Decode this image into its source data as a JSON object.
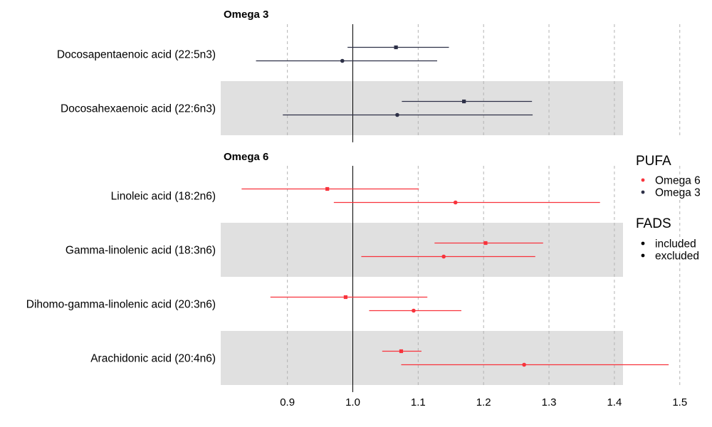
{
  "chart_data": {
    "type": "forest",
    "x_ticks": [
      0.9,
      1.0,
      1.1,
      1.2,
      1.3,
      1.4,
      1.5
    ],
    "x_tick_labels": [
      "0.9",
      "1.0",
      "1.1",
      "1.2",
      "1.3",
      "1.4",
      "1.5"
    ],
    "reference_line": 1.0,
    "panels": [
      {
        "title": "Omega 3",
        "group": "Omega 3",
        "rows": [
          {
            "label": "Docosapentaenoic acid (22:5n3)",
            "shaded": false,
            "estimates": [
              {
                "fads": "included",
                "est": 1.066,
                "lo": 0.992,
                "hi": 1.147
              },
              {
                "fads": "excluded",
                "est": 0.984,
                "lo": 0.852,
                "hi": 1.129
              }
            ]
          },
          {
            "label": "Docosahexaenoic acid (22:6n3)",
            "shaded": true,
            "estimates": [
              {
                "fads": "included",
                "est": 1.17,
                "lo": 1.075,
                "hi": 1.274
              },
              {
                "fads": "excluded",
                "est": 1.068,
                "lo": 0.893,
                "hi": 1.275
              }
            ]
          }
        ]
      },
      {
        "title": "Omega 6",
        "group": "Omega 6",
        "rows": [
          {
            "label": "Linoleic acid (18:2n6)",
            "shaded": false,
            "estimates": [
              {
                "fads": "included",
                "est": 0.961,
                "lo": 0.83,
                "hi": 1.101
              },
              {
                "fads": "excluded",
                "est": 1.157,
                "lo": 0.971,
                "hi": 1.378
              }
            ]
          },
          {
            "label": "Gamma-linolenic acid (18:3n6)",
            "shaded": true,
            "estimates": [
              {
                "fads": "included",
                "est": 1.203,
                "lo": 1.125,
                "hi": 1.291
              },
              {
                "fads": "excluded",
                "est": 1.139,
                "lo": 1.013,
                "hi": 1.279
              }
            ]
          },
          {
            "label": "Dihomo-gamma-linolenic acid (20:3n6)",
            "shaded": false,
            "estimates": [
              {
                "fads": "included",
                "est": 0.989,
                "lo": 0.874,
                "hi": 1.114
              },
              {
                "fads": "excluded",
                "est": 1.093,
                "lo": 1.025,
                "hi": 1.166
              }
            ]
          },
          {
            "label": "Arachidonic acid (20:4n6)",
            "shaded": true,
            "estimates": [
              {
                "fads": "included",
                "est": 1.074,
                "lo": 1.045,
                "hi": 1.105
              },
              {
                "fads": "excluded",
                "est": 1.262,
                "lo": 1.074,
                "hi": 1.483
              }
            ]
          }
        ]
      }
    ],
    "legend": {
      "pufa_title": "PUFA",
      "pufa_items": [
        {
          "label": "Omega 6",
          "color": "#f8333c"
        },
        {
          "label": "Omega 3",
          "color": "#2d3047"
        }
      ],
      "fads_title": "FADS",
      "fads_items": [
        {
          "label": "included"
        },
        {
          "label": "excluded"
        }
      ]
    },
    "colors": {
      "Omega 3": "#2d3047",
      "Omega 6": "#f8333c",
      "shade": "#e0e0e0",
      "grid": "#b3b3b3",
      "reference": "#000000"
    },
    "grid": "dashed vertical",
    "legend_position": "right"
  }
}
